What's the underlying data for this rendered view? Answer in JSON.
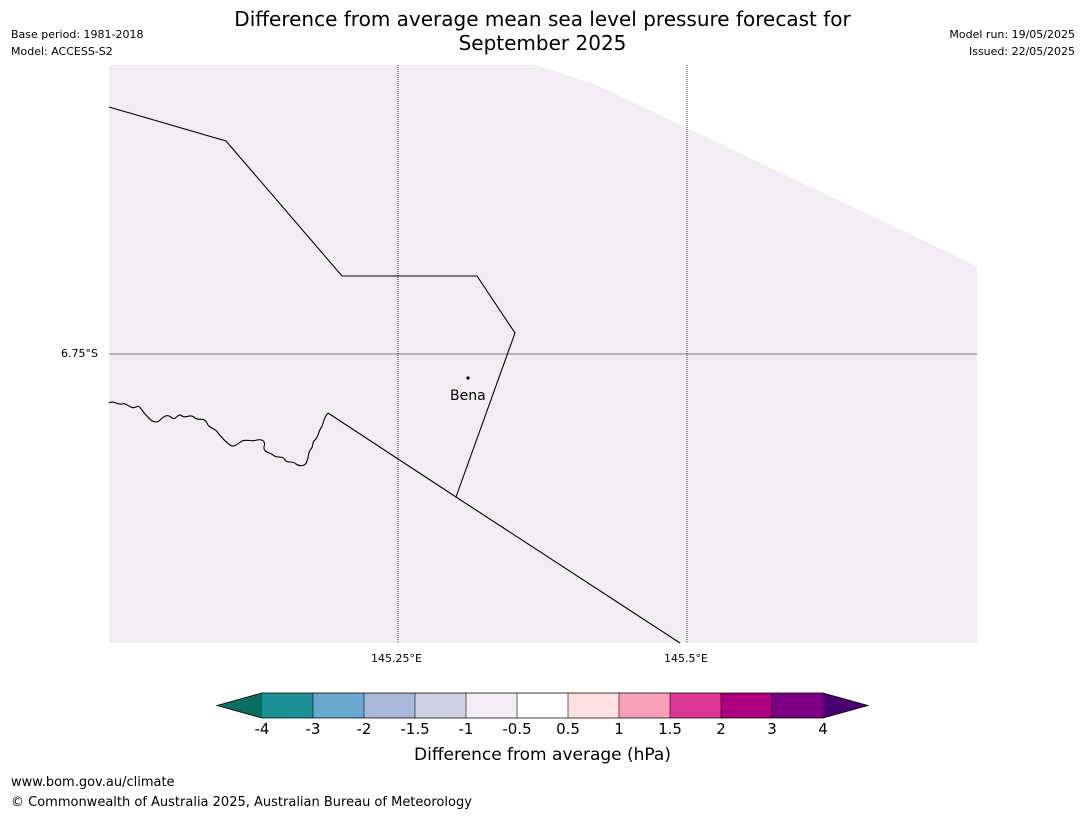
{
  "title": {
    "line1": "Difference from average mean sea level pressure forecast for",
    "line2": "September 2025"
  },
  "meta_left": {
    "base_period": "Base period: 1981-2018",
    "model": "Model: ACCESS-S2"
  },
  "meta_right": {
    "model_run": "Model run: 19/05/2025",
    "issued": "Issued: 22/05/2025"
  },
  "map": {
    "latitude_labels": [
      "6.75°S"
    ],
    "longitude_labels": [
      "145.25°E",
      "145.5°E"
    ],
    "place": "Bena",
    "fill_color": "#f4ecf5"
  },
  "colorbar": {
    "ticks": [
      "-4",
      "-3",
      "-2",
      "-1.5",
      "-1",
      "-0.5",
      "0.5",
      "1",
      "1.5",
      "2",
      "3",
      "4"
    ],
    "colors": [
      "#0b6e61",
      "#1d9198",
      "#6aa8d0",
      "#a7b8da",
      "#d0d0e6",
      "#f4ecf5",
      "#ffffff",
      "#fde0df",
      "#f9a0b8",
      "#dc3696",
      "#ad0080",
      "#7e0183",
      "#4b0070"
    ],
    "label": "Difference from average (hPa)"
  },
  "footer": {
    "url": "www.bom.gov.au/climate",
    "copyright": "© Commonwealth of Australia 2025, Australian Bureau of Meteorology"
  }
}
